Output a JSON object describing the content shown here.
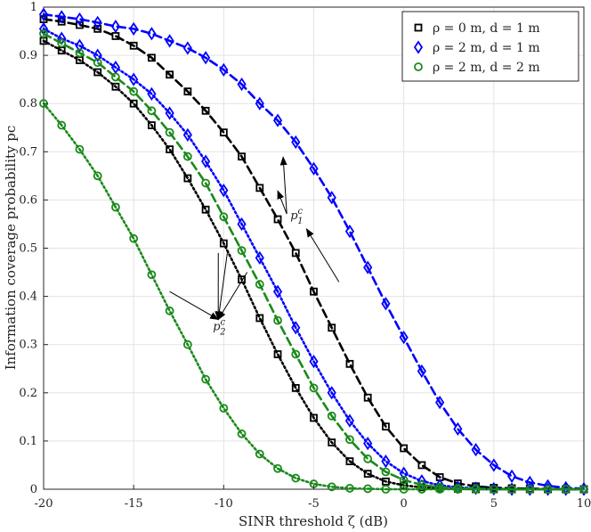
{
  "chart_data": {
    "type": "line",
    "title": "",
    "xlabel": "SINR threshold ζ (dB)",
    "ylabel": "Information coverage probability pc",
    "xlim": [
      -20,
      10
    ],
    "ylim": [
      0,
      1
    ],
    "x_ticks": [
      -20,
      -15,
      -10,
      -5,
      0,
      5,
      10
    ],
    "x_tick_labels": [
      "-20",
      "-15",
      "-10",
      "-5",
      "0",
      "5",
      "10"
    ],
    "y_ticks": [
      0,
      0.1,
      0.2,
      0.3,
      0.4,
      0.5,
      0.6,
      0.7,
      0.8,
      0.9,
      1
    ],
    "y_tick_labels": [
      "0",
      "0.1",
      "0.2",
      "0.3",
      "0.4",
      "0.5",
      "0.6",
      "0.7",
      "0.8",
      "0.9",
      "1"
    ],
    "grid": true,
    "legend_position": "top-right",
    "x": [
      -20,
      -19,
      -18,
      -17,
      -16,
      -15,
      -14,
      -13,
      -12,
      -11,
      -10,
      -9,
      -8,
      -7,
      -6,
      -5,
      -4,
      -3,
      -2,
      -1,
      0,
      1,
      2,
      3,
      4,
      5,
      6,
      7,
      8,
      9,
      10
    ],
    "series": [
      {
        "name": "ρ = 0 m, d = 1 m",
        "curve": "p1c",
        "color": "#000000",
        "marker": "square",
        "line_style": "dashed",
        "values": [
          0.975,
          0.97,
          0.963,
          0.955,
          0.94,
          0.92,
          0.895,
          0.86,
          0.825,
          0.785,
          0.74,
          0.69,
          0.625,
          0.56,
          0.49,
          0.41,
          0.335,
          0.26,
          0.19,
          0.13,
          0.085,
          0.05,
          0.025,
          0.012,
          0.006,
          0.003,
          0.002,
          0.001,
          0.001,
          0,
          0
        ]
      },
      {
        "name": "ρ = 0 m, d = 1 m",
        "curve": "p2c",
        "color": "#000000",
        "marker": "square",
        "line_style": "dotted",
        "values": [
          0.93,
          0.91,
          0.89,
          0.865,
          0.835,
          0.8,
          0.755,
          0.705,
          0.645,
          0.58,
          0.51,
          0.435,
          0.355,
          0.28,
          0.21,
          0.148,
          0.097,
          0.058,
          0.032,
          0.016,
          0.008,
          0.004,
          0.002,
          0.001,
          0,
          0,
          0,
          0,
          0,
          0,
          0
        ]
      },
      {
        "name": "ρ = 2 m, d = 1 m",
        "curve": "p1c",
        "color": "#0000ff",
        "marker": "diamond",
        "line_style": "dashed",
        "values": [
          0.985,
          0.98,
          0.975,
          0.968,
          0.96,
          0.955,
          0.945,
          0.93,
          0.915,
          0.895,
          0.87,
          0.84,
          0.8,
          0.765,
          0.72,
          0.665,
          0.605,
          0.535,
          0.46,
          0.385,
          0.315,
          0.245,
          0.18,
          0.125,
          0.082,
          0.05,
          0.027,
          0.014,
          0.007,
          0.003,
          0.001
        ]
      },
      {
        "name": "ρ = 2 m, d = 1 m",
        "curve": "p2c",
        "color": "#0000ff",
        "marker": "diamond",
        "line_style": "dotted",
        "values": [
          0.955,
          0.935,
          0.92,
          0.9,
          0.875,
          0.85,
          0.82,
          0.78,
          0.735,
          0.68,
          0.62,
          0.55,
          0.48,
          0.41,
          0.335,
          0.265,
          0.2,
          0.142,
          0.095,
          0.058,
          0.033,
          0.017,
          0.008,
          0.004,
          0.002,
          0.001,
          0,
          0,
          0,
          0,
          0
        ]
      },
      {
        "name": "ρ = 2 m, d = 2 m",
        "curve": "p1c",
        "color": "#1a8a1a",
        "marker": "circle",
        "line_style": "dashed",
        "values": [
          0.945,
          0.925,
          0.905,
          0.885,
          0.855,
          0.825,
          0.785,
          0.74,
          0.69,
          0.635,
          0.565,
          0.495,
          0.425,
          0.35,
          0.28,
          0.21,
          0.152,
          0.103,
          0.063,
          0.036,
          0.019,
          0.009,
          0.004,
          0.002,
          0.001,
          0,
          0,
          0,
          0,
          0,
          0
        ]
      },
      {
        "name": "ρ = 2 m, d = 2 m",
        "curve": "p2c",
        "color": "#1a8a1a",
        "marker": "circle",
        "line_style": "dotted",
        "values": [
          0.8,
          0.755,
          0.705,
          0.65,
          0.585,
          0.52,
          0.445,
          0.37,
          0.3,
          0.228,
          0.168,
          0.115,
          0.073,
          0.043,
          0.023,
          0.011,
          0.005,
          0.002,
          0.001,
          0,
          0,
          0,
          0,
          0,
          0,
          0,
          0,
          0,
          0,
          0,
          0
        ]
      }
    ],
    "legend": [
      {
        "label": "ρ = 0 m, d = 1 m",
        "color": "#000000",
        "marker": "square"
      },
      {
        "label": "ρ = 2 m, d = 1 m",
        "color": "#0000ff",
        "marker": "diamond"
      },
      {
        "label": "ρ = 2 m, d = 2 m",
        "color": "#1a8a1a",
        "marker": "circle"
      }
    ],
    "annotations": [
      {
        "text": "p1c",
        "base": "p",
        "sub": "1",
        "sup": "c",
        "x": -6.3,
        "y": 0.56,
        "arrows_to": [
          [
            -7,
            0.63
          ],
          [
            -6.7,
            0.7
          ]
        ],
        "arrow_from_far": [
          [
            -3.6,
            0.43
          ],
          [
            -5.4,
            0.54
          ]
        ]
      },
      {
        "text": "p2c",
        "base": "p",
        "sub": "2",
        "sup": "c",
        "x": -10.6,
        "y": 0.33,
        "arrows_from": [
          [
            -13,
            0.41
          ],
          [
            -10.3,
            0.49
          ],
          [
            -9.8,
            0.49
          ],
          [
            -8.7,
            0.45
          ]
        ]
      }
    ]
  }
}
